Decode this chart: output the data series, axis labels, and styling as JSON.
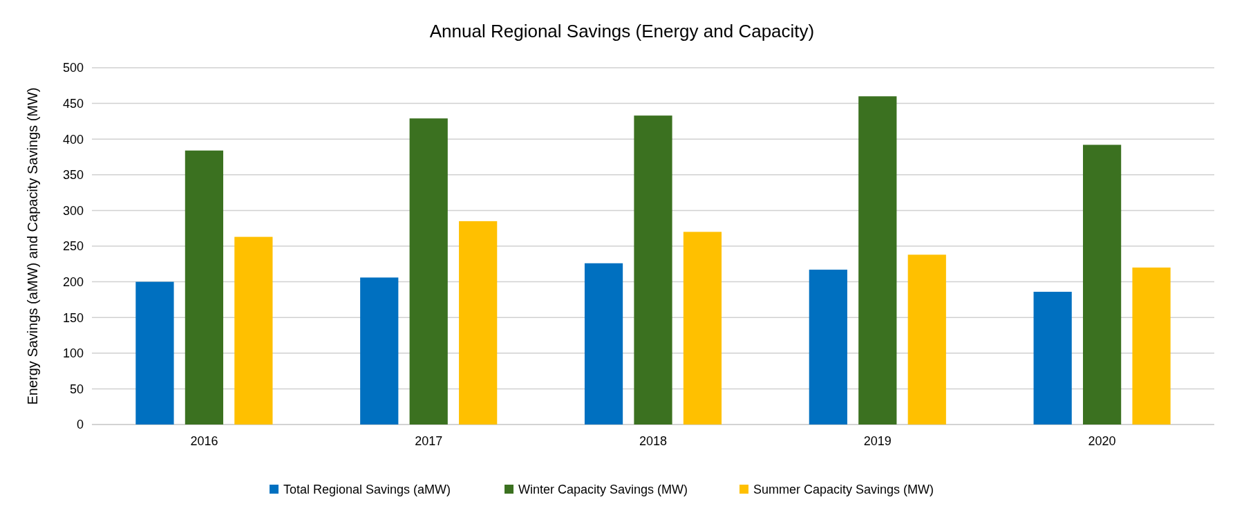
{
  "chart_data": {
    "type": "bar",
    "title": "Annual Regional Savings (Energy and Capacity)",
    "ylabel": "Energy Savings (aMW) and Capacity Savings (MW)",
    "categories": [
      "2016",
      "2017",
      "2018",
      "2019",
      "2020"
    ],
    "series": [
      {
        "name": "Total Regional Savings (aMW)",
        "color": "#0070c0",
        "values": [
          200,
          206,
          226,
          217,
          186
        ]
      },
      {
        "name": "Winter Capacity Savings (MW)",
        "color": "#3b7120",
        "values": [
          384,
          429,
          433,
          460,
          392
        ]
      },
      {
        "name": "Summer Capacity Savings (MW)",
        "color": "#ffc000",
        "values": [
          263,
          285,
          270,
          238,
          220
        ]
      }
    ],
    "ylim": [
      0,
      500
    ],
    "yticks": [
      0,
      50,
      100,
      150,
      200,
      250,
      300,
      350,
      400,
      450,
      500
    ],
    "grid": "y",
    "legend": "bottom"
  }
}
